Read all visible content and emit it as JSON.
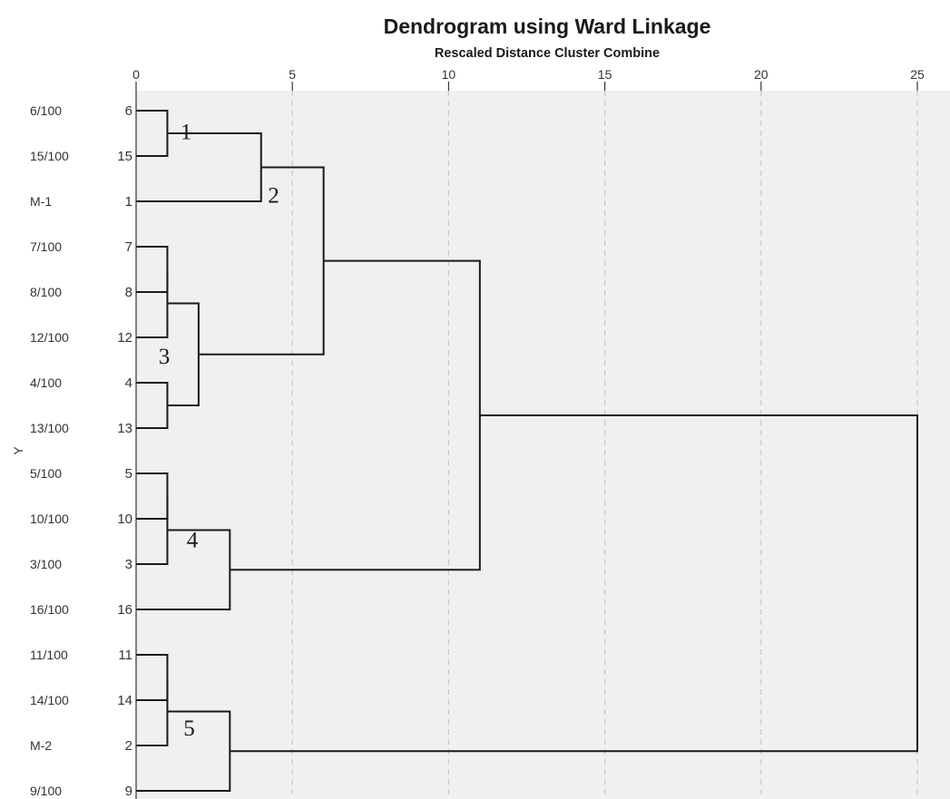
{
  "chart_data": {
    "type": "dendrogram",
    "title": "Dendrogram using Ward Linkage",
    "subtitle": "Rescaled Distance Cluster Combine",
    "ylabel": "Y",
    "xlim": [
      0,
      25
    ],
    "xticks": [
      0,
      5,
      10,
      15,
      20,
      25
    ],
    "grid": true,
    "leaves": [
      {
        "label": "6/100",
        "case": "6"
      },
      {
        "label": "15/100",
        "case": "15"
      },
      {
        "label": "M-1",
        "case": "1"
      },
      {
        "label": "7/100",
        "case": "7"
      },
      {
        "label": "8/100",
        "case": "8"
      },
      {
        "label": "12/100",
        "case": "12"
      },
      {
        "label": "4/100",
        "case": "4"
      },
      {
        "label": "13/100",
        "case": "13"
      },
      {
        "label": "5/100",
        "case": "5"
      },
      {
        "label": "10/100",
        "case": "10"
      },
      {
        "label": "3/100",
        "case": "3"
      },
      {
        "label": "16/100",
        "case": "16"
      },
      {
        "label": "11/100",
        "case": "11"
      },
      {
        "label": "14/100",
        "case": "14"
      },
      {
        "label": "M-2",
        "case": "2"
      },
      {
        "label": "9/100",
        "case": "9"
      }
    ],
    "merges": [
      {
        "left": "L0",
        "right": "L1",
        "distance": 1.0
      },
      {
        "left": "M0",
        "right": "L2",
        "distance": 4.0
      },
      {
        "left": "L3",
        "right": "L4",
        "distance": 1.0
      },
      {
        "left": "M2",
        "right": "L5",
        "distance": 1.0
      },
      {
        "left": "L6",
        "right": "L7",
        "distance": 1.0
      },
      {
        "left": "M3",
        "right": "M4",
        "distance": 2.0
      },
      {
        "left": "M1",
        "right": "M5",
        "distance": 6.0
      },
      {
        "left": "L8",
        "right": "L9",
        "distance": 1.0
      },
      {
        "left": "M7",
        "right": "L10",
        "distance": 1.0
      },
      {
        "left": "M8",
        "right": "L11",
        "distance": 3.0
      },
      {
        "left": "M6",
        "right": "M9",
        "distance": 11.0
      },
      {
        "left": "L12",
        "right": "L13",
        "distance": 1.0
      },
      {
        "left": "M11",
        "right": "L14",
        "distance": 1.0
      },
      {
        "left": "M12",
        "right": "L15",
        "distance": 3.0
      },
      {
        "left": "M10",
        "right": "M13",
        "distance": 25.0
      }
    ],
    "annotations": [
      {
        "text": "1",
        "x": 1.6,
        "row": 0.45
      },
      {
        "text": "2",
        "x": 4.4,
        "row": 1.85
      },
      {
        "text": "3",
        "x": 0.9,
        "row": 5.4
      },
      {
        "text": "4",
        "x": 1.8,
        "row": 9.45
      },
      {
        "text": "5",
        "x": 1.7,
        "row": 13.6
      }
    ]
  }
}
